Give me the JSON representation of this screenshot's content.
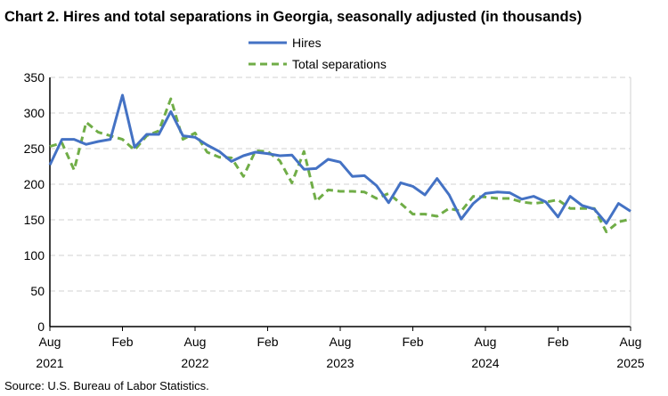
{
  "chart_data": {
    "type": "line",
    "title": "Chart 2. Hires and total separations in Georgia, seasonally adjusted (in thousands)",
    "source": "Source: U.S. Bureau of Labor Statistics.",
    "xlabel": "",
    "ylabel": "",
    "ylim": [
      0,
      350
    ],
    "yticks": [
      0,
      50,
      100,
      150,
      200,
      250,
      300,
      350
    ],
    "grid": true,
    "legend_placement": "top-center",
    "x_start": "Aug 2021",
    "x_end": "Aug 2025",
    "xtick_labels": [
      {
        "index": 0,
        "month": "Aug",
        "year": "2021"
      },
      {
        "index": 6,
        "month": "Feb",
        "year": ""
      },
      {
        "index": 12,
        "month": "Aug",
        "year": "2022"
      },
      {
        "index": 18,
        "month": "Feb",
        "year": ""
      },
      {
        "index": 24,
        "month": "Aug",
        "year": "2023"
      },
      {
        "index": 30,
        "month": "Feb",
        "year": ""
      },
      {
        "index": 36,
        "month": "Aug",
        "year": "2024"
      },
      {
        "index": 42,
        "month": "Feb",
        "year": ""
      },
      {
        "index": 48,
        "month": "Aug",
        "year": "2025"
      }
    ],
    "series": [
      {
        "name": "Hires",
        "color": "#4472C4",
        "dash": false,
        "values": [
          227,
          263,
          263,
          256,
          260,
          263,
          325,
          252,
          270,
          270,
          302,
          268,
          266,
          255,
          246,
          232,
          240,
          245,
          243,
          240,
          241,
          221,
          222,
          235,
          231,
          211,
          212,
          198,
          174,
          202,
          197,
          185,
          208,
          185,
          151,
          173,
          187,
          189,
          188,
          179,
          183,
          175,
          154,
          183,
          170,
          165,
          145,
          173,
          162
        ]
      },
      {
        "name": "Total separations",
        "color": "#70AD47",
        "dash": true,
        "values": [
          253,
          258,
          220,
          287,
          273,
          268,
          263,
          248,
          268,
          275,
          320,
          263,
          272,
          245,
          238,
          237,
          211,
          247,
          246,
          233,
          202,
          246,
          176,
          192,
          190,
          190,
          189,
          180,
          187,
          173,
          158,
          158,
          155,
          166,
          162,
          183,
          182,
          180,
          180,
          175,
          173,
          175,
          178,
          166,
          166,
          166,
          133,
          147,
          151
        ]
      }
    ]
  }
}
